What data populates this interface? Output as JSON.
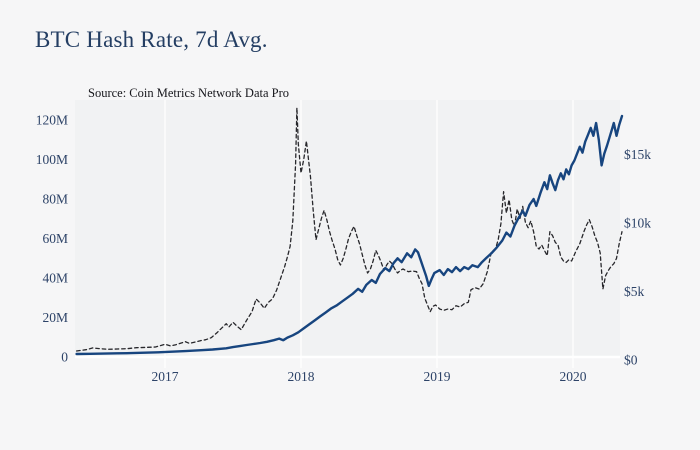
{
  "colors": {
    "background": "#f6f6f7",
    "plot_panel": "#f1f2f3",
    "gridline": "#ffffff",
    "hash_rate_line": "#17457f",
    "price_line": "#27272b",
    "title_text": "#243e63",
    "axis_text": "#2d4368",
    "subtitle_text": "#17171c"
  },
  "chart_data": {
    "type": "line",
    "title": "BTC Hash Rate, 7d Avg.",
    "subtitle": "Source: Coin Metrics Network Data Pro",
    "x_unit": "decimal_year",
    "x_range": [
      2016.35,
      2020.36
    ],
    "grid": "vertical-year-lines",
    "legend_position": "none",
    "x_axis": {
      "ticks": [
        {
          "label": "2017",
          "year": 2017
        },
        {
          "label": "2018",
          "year": 2018
        },
        {
          "label": "2019",
          "year": 2019
        },
        {
          "label": "2020",
          "year": 2020
        }
      ]
    },
    "y_axis_left": {
      "unit": "hash rate (millions of TH/s)",
      "range": [
        0,
        130
      ],
      "ticks": [
        {
          "label": "0",
          "value": 0
        },
        {
          "label": "20M",
          "value": 20
        },
        {
          "label": "40M",
          "value": 40
        },
        {
          "label": "60M",
          "value": 60
        },
        {
          "label": "80M",
          "value": 80
        },
        {
          "label": "100M",
          "value": 100
        },
        {
          "label": "120M",
          "value": 120
        }
      ]
    },
    "y_axis_right": {
      "unit": "BTC price (USD, thousands)",
      "range": [
        0,
        19.3
      ],
      "ticks": [
        {
          "label": "$0",
          "value": 0
        },
        {
          "label": "$5k",
          "value": 5
        },
        {
          "label": "$10k",
          "value": 10
        },
        {
          "label": "$15k",
          "value": 15
        }
      ]
    },
    "series": [
      {
        "name": "btc_price_usd_k",
        "axis": "right",
        "style": "dashed",
        "points": [
          [
            2016.35,
            0.45
          ],
          [
            2016.42,
            0.55
          ],
          [
            2016.47,
            0.68
          ],
          [
            2016.52,
            0.62
          ],
          [
            2016.58,
            0.58
          ],
          [
            2016.65,
            0.6
          ],
          [
            2016.72,
            0.62
          ],
          [
            2016.79,
            0.7
          ],
          [
            2016.86,
            0.72
          ],
          [
            2016.93,
            0.75
          ],
          [
            2017.0,
            0.95
          ],
          [
            2017.04,
            0.83
          ],
          [
            2017.08,
            0.92
          ],
          [
            2017.12,
            1.05
          ],
          [
            2017.15,
            1.15
          ],
          [
            2017.18,
            1.02
          ],
          [
            2017.22,
            1.12
          ],
          [
            2017.26,
            1.22
          ],
          [
            2017.3,
            1.3
          ],
          [
            2017.34,
            1.45
          ],
          [
            2017.38,
            1.8
          ],
          [
            2017.42,
            2.2
          ],
          [
            2017.45,
            2.5
          ],
          [
            2017.47,
            2.25
          ],
          [
            2017.5,
            2.6
          ],
          [
            2017.53,
            2.3
          ],
          [
            2017.56,
            2.05
          ],
          [
            2017.6,
            2.75
          ],
          [
            2017.64,
            3.4
          ],
          [
            2017.67,
            4.35
          ],
          [
            2017.7,
            4.05
          ],
          [
            2017.73,
            3.65
          ],
          [
            2017.76,
            4.1
          ],
          [
            2017.79,
            4.35
          ],
          [
            2017.82,
            5.0
          ],
          [
            2017.85,
            5.9
          ],
          [
            2017.88,
            6.8
          ],
          [
            2017.9,
            7.5
          ],
          [
            2017.92,
            8.3
          ],
          [
            2017.94,
            10.2
          ],
          [
            2017.96,
            14.5
          ],
          [
            2017.97,
            18.7
          ],
          [
            2017.98,
            16.0
          ],
          [
            2018.0,
            13.8
          ],
          [
            2018.02,
            14.8
          ],
          [
            2018.04,
            16.2
          ],
          [
            2018.07,
            13.5
          ],
          [
            2018.09,
            11.0
          ],
          [
            2018.11,
            8.8
          ],
          [
            2018.13,
            9.6
          ],
          [
            2018.15,
            10.4
          ],
          [
            2018.17,
            11.0
          ],
          [
            2018.19,
            10.3
          ],
          [
            2018.21,
            9.4
          ],
          [
            2018.23,
            8.7
          ],
          [
            2018.25,
            8.1
          ],
          [
            2018.27,
            7.3
          ],
          [
            2018.29,
            6.9
          ],
          [
            2018.31,
            7.4
          ],
          [
            2018.33,
            8.1
          ],
          [
            2018.35,
            8.9
          ],
          [
            2018.37,
            9.4
          ],
          [
            2018.39,
            9.8
          ],
          [
            2018.41,
            9.1
          ],
          [
            2018.43,
            8.5
          ],
          [
            2018.45,
            7.7
          ],
          [
            2018.47,
            6.9
          ],
          [
            2018.49,
            6.3
          ],
          [
            2018.51,
            6.6
          ],
          [
            2018.53,
            7.2
          ],
          [
            2018.55,
            8.0
          ],
          [
            2018.57,
            7.6
          ],
          [
            2018.59,
            7.1
          ],
          [
            2018.61,
            6.5
          ],
          [
            2018.63,
            6.9
          ],
          [
            2018.65,
            7.2
          ],
          [
            2018.67,
            7.0
          ],
          [
            2018.69,
            6.6
          ],
          [
            2018.71,
            6.3
          ],
          [
            2018.73,
            6.5
          ],
          [
            2018.75,
            6.6
          ],
          [
            2018.77,
            6.5
          ],
          [
            2018.79,
            6.4
          ],
          [
            2018.82,
            6.45
          ],
          [
            2018.85,
            6.4
          ],
          [
            2018.87,
            5.9
          ],
          [
            2018.89,
            5.5
          ],
          [
            2018.91,
            4.4
          ],
          [
            2018.93,
            3.9
          ],
          [
            2018.95,
            3.4
          ],
          [
            2018.97,
            3.8
          ],
          [
            2018.99,
            3.9
          ],
          [
            2019.02,
            3.6
          ],
          [
            2019.05,
            3.5
          ],
          [
            2019.08,
            3.6
          ],
          [
            2019.11,
            3.55
          ],
          [
            2019.14,
            3.85
          ],
          [
            2019.17,
            3.75
          ],
          [
            2019.2,
            4.0
          ],
          [
            2019.23,
            4.1
          ],
          [
            2019.25,
            5.05
          ],
          [
            2019.28,
            5.2
          ],
          [
            2019.31,
            5.1
          ],
          [
            2019.34,
            5.5
          ],
          [
            2019.37,
            6.4
          ],
          [
            2019.4,
            7.9
          ],
          [
            2019.43,
            8.1
          ],
          [
            2019.45,
            8.8
          ],
          [
            2019.47,
            10.0
          ],
          [
            2019.49,
            12.4
          ],
          [
            2019.51,
            10.8
          ],
          [
            2019.53,
            11.8
          ],
          [
            2019.55,
            10.3
          ],
          [
            2019.57,
            9.8
          ],
          [
            2019.59,
            11.1
          ],
          [
            2019.61,
            10.4
          ],
          [
            2019.63,
            11.3
          ],
          [
            2019.65,
            10.1
          ],
          [
            2019.67,
            9.7
          ],
          [
            2019.69,
            10.2
          ],
          [
            2019.71,
            9.4
          ],
          [
            2019.73,
            8.3
          ],
          [
            2019.75,
            8.1
          ],
          [
            2019.77,
            8.4
          ],
          [
            2019.79,
            8.0
          ],
          [
            2019.81,
            7.6
          ],
          [
            2019.83,
            9.4
          ],
          [
            2019.85,
            9.1
          ],
          [
            2019.87,
            8.6
          ],
          [
            2019.89,
            8.4
          ],
          [
            2019.91,
            7.5
          ],
          [
            2019.93,
            7.2
          ],
          [
            2019.95,
            7.1
          ],
          [
            2019.97,
            7.3
          ],
          [
            2019.99,
            7.2
          ],
          [
            2020.02,
            7.9
          ],
          [
            2020.05,
            8.5
          ],
          [
            2020.08,
            9.4
          ],
          [
            2020.1,
            9.9
          ],
          [
            2020.12,
            10.3
          ],
          [
            2020.14,
            9.8
          ],
          [
            2020.16,
            9.1
          ],
          [
            2020.18,
            8.6
          ],
          [
            2020.2,
            7.8
          ],
          [
            2020.22,
            5.1
          ],
          [
            2020.24,
            6.1
          ],
          [
            2020.26,
            6.5
          ],
          [
            2020.28,
            6.8
          ],
          [
            2020.3,
            7.0
          ],
          [
            2020.32,
            7.4
          ],
          [
            2020.34,
            8.5
          ],
          [
            2020.36,
            9.4
          ]
        ]
      },
      {
        "name": "btc_hash_rate_7d_avg_M",
        "axis": "left",
        "style": "solid",
        "points": [
          [
            2016.35,
            1.5
          ],
          [
            2016.45,
            1.6
          ],
          [
            2016.55,
            1.7
          ],
          [
            2016.65,
            1.85
          ],
          [
            2016.75,
            2.0
          ],
          [
            2016.85,
            2.2
          ],
          [
            2016.95,
            2.4
          ],
          [
            2017.05,
            2.7
          ],
          [
            2017.15,
            3.0
          ],
          [
            2017.25,
            3.4
          ],
          [
            2017.35,
            3.8
          ],
          [
            2017.45,
            4.4
          ],
          [
            2017.5,
            5.0
          ],
          [
            2017.55,
            5.5
          ],
          [
            2017.6,
            6.1
          ],
          [
            2017.65,
            6.6
          ],
          [
            2017.7,
            7.1
          ],
          [
            2017.75,
            7.7
          ],
          [
            2017.8,
            8.5
          ],
          [
            2017.84,
            9.3
          ],
          [
            2017.87,
            8.5
          ],
          [
            2017.9,
            9.8
          ],
          [
            2017.94,
            11.0
          ],
          [
            2017.98,
            12.5
          ],
          [
            2018.02,
            14.5
          ],
          [
            2018.06,
            16.5
          ],
          [
            2018.1,
            18.5
          ],
          [
            2018.14,
            20.5
          ],
          [
            2018.18,
            22.5
          ],
          [
            2018.22,
            24.5
          ],
          [
            2018.26,
            26.0
          ],
          [
            2018.3,
            28.0
          ],
          [
            2018.34,
            30.0
          ],
          [
            2018.38,
            32.0
          ],
          [
            2018.42,
            34.5
          ],
          [
            2018.45,
            33.0
          ],
          [
            2018.48,
            36.5
          ],
          [
            2018.52,
            39.0
          ],
          [
            2018.55,
            37.5
          ],
          [
            2018.58,
            42.0
          ],
          [
            2018.62,
            45.0
          ],
          [
            2018.65,
            43.5
          ],
          [
            2018.68,
            47.5
          ],
          [
            2018.71,
            50.0
          ],
          [
            2018.74,
            48.0
          ],
          [
            2018.78,
            52.5
          ],
          [
            2018.81,
            50.5
          ],
          [
            2018.84,
            54.5
          ],
          [
            2018.86,
            53.0
          ],
          [
            2018.88,
            49.0
          ],
          [
            2018.9,
            45.0
          ],
          [
            2018.92,
            41.0
          ],
          [
            2018.94,
            36.0
          ],
          [
            2018.96,
            39.5
          ],
          [
            2018.98,
            42.5
          ],
          [
            2019.02,
            44.0
          ],
          [
            2019.05,
            41.5
          ],
          [
            2019.08,
            44.5
          ],
          [
            2019.11,
            43.0
          ],
          [
            2019.14,
            45.5
          ],
          [
            2019.17,
            43.5
          ],
          [
            2019.2,
            45.5
          ],
          [
            2019.23,
            44.5
          ],
          [
            2019.26,
            46.5
          ],
          [
            2019.3,
            45.5
          ],
          [
            2019.33,
            48.0
          ],
          [
            2019.36,
            50.0
          ],
          [
            2019.4,
            52.5
          ],
          [
            2019.44,
            55.5
          ],
          [
            2019.48,
            59.0
          ],
          [
            2019.51,
            63.0
          ],
          [
            2019.54,
            61.0
          ],
          [
            2019.57,
            66.5
          ],
          [
            2019.6,
            70.5
          ],
          [
            2019.63,
            74.0
          ],
          [
            2019.65,
            71.5
          ],
          [
            2019.68,
            77.0
          ],
          [
            2019.71,
            80.0
          ],
          [
            2019.73,
            76.5
          ],
          [
            2019.76,
            83.0
          ],
          [
            2019.79,
            88.5
          ],
          [
            2019.81,
            85.0
          ],
          [
            2019.83,
            92.0
          ],
          [
            2019.85,
            88.0
          ],
          [
            2019.87,
            84.5
          ],
          [
            2019.89,
            89.5
          ],
          [
            2019.91,
            93.0
          ],
          [
            2019.93,
            90.0
          ],
          [
            2019.95,
            95.0
          ],
          [
            2019.97,
            92.5
          ],
          [
            2019.99,
            97.0
          ],
          [
            2020.01,
            99.5
          ],
          [
            2020.03,
            103.0
          ],
          [
            2020.05,
            106.5
          ],
          [
            2020.07,
            103.5
          ],
          [
            2020.09,
            109.0
          ],
          [
            2020.11,
            112.5
          ],
          [
            2020.13,
            116.0
          ],
          [
            2020.15,
            112.0
          ],
          [
            2020.17,
            118.5
          ],
          [
            2020.19,
            110.0
          ],
          [
            2020.21,
            97.0
          ],
          [
            2020.23,
            103.0
          ],
          [
            2020.25,
            107.0
          ],
          [
            2020.27,
            111.5
          ],
          [
            2020.29,
            116.0
          ],
          [
            2020.3,
            118.5
          ],
          [
            2020.32,
            112.0
          ],
          [
            2020.34,
            117.5
          ],
          [
            2020.36,
            122.0
          ]
        ]
      }
    ]
  }
}
